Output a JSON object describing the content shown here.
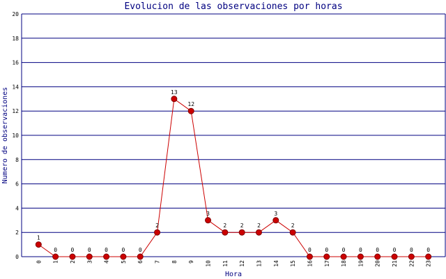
{
  "chart_data": {
    "type": "line",
    "title": "Evolucion de las observaciones por horas",
    "x_label": "Hora",
    "y_label": "Numero de observaciones",
    "categories": [
      "0",
      "1",
      "2",
      "3",
      "4",
      "5",
      "6",
      "7",
      "8",
      "9",
      "10",
      "11",
      "12",
      "13",
      "14",
      "15",
      "16",
      "17",
      "18",
      "19",
      "20",
      "21",
      "22",
      "23"
    ],
    "series": [
      {
        "name": "Observaciones",
        "color": "#cc0000",
        "values": [
          1,
          0,
          0,
          0,
          0,
          0,
          0,
          2,
          13,
          12,
          3,
          2,
          2,
          2,
          3,
          2,
          0,
          0,
          0,
          0,
          0,
          0,
          0,
          0
        ]
      }
    ],
    "ylim": [
      0,
      20
    ],
    "yticks": [
      0,
      2,
      4,
      6,
      8,
      10,
      12,
      14,
      16,
      18,
      20
    ],
    "grid": true,
    "data_labels": true
  }
}
